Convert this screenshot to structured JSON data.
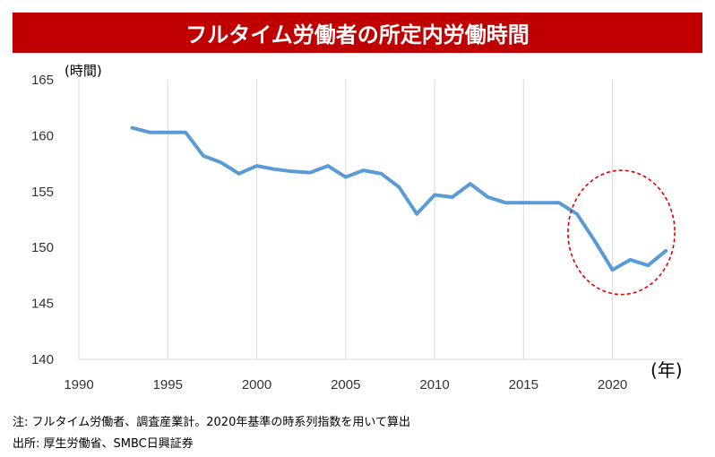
{
  "title": "フルタイム労働者の所定内労働時間",
  "notes": [
    "注: フルタイム労働者、調査産業計。2020年基準の時系列指数を用いて算出",
    "出所: 厚生労働省、SMBC日興証券"
  ],
  "colors": {
    "title_bg": "#c00000",
    "line": "#5b9bd5",
    "highlight_circle": "#e00000",
    "grid": "#d9d9d9"
  },
  "chart_data": {
    "type": "line",
    "title": "フルタイム労働者の所定内労働時間",
    "ylabel": "(時間)",
    "xlabel": "(年)",
    "xlim": [
      1990,
      2024
    ],
    "ylim": [
      140,
      165
    ],
    "xticks": [
      1990,
      1995,
      2000,
      2005,
      2010,
      2015,
      2020
    ],
    "yticks": [
      140,
      145,
      150,
      155,
      160,
      165
    ],
    "grid": "vertical",
    "series": [
      {
        "x": [
          1993,
          1994,
          1995,
          1996,
          1997,
          1998,
          1999,
          2000,
          2001,
          2002,
          2003,
          2004,
          2005,
          2006,
          2007,
          2008,
          2009,
          2010,
          2011,
          2012,
          2013,
          2014,
          2015,
          2016,
          2017,
          2018,
          2019,
          2020,
          2021,
          2022,
          2023
        ],
        "values": [
          160.7,
          160.3,
          160.3,
          160.3,
          158.2,
          157.6,
          156.6,
          157.3,
          157.0,
          156.8,
          156.7,
          157.3,
          156.3,
          156.9,
          156.6,
          155.4,
          153.0,
          154.7,
          154.5,
          155.7,
          154.5,
          154.0,
          154.0,
          154.0,
          154.0,
          153.0,
          150.6,
          148.0,
          148.9,
          148.4,
          149.7
        ]
      }
    ],
    "annotation": {
      "type": "dashed-circle",
      "x_range": [
        2017.5,
        2023.5
      ],
      "y_range": [
        145.8,
        156.9
      ]
    }
  }
}
